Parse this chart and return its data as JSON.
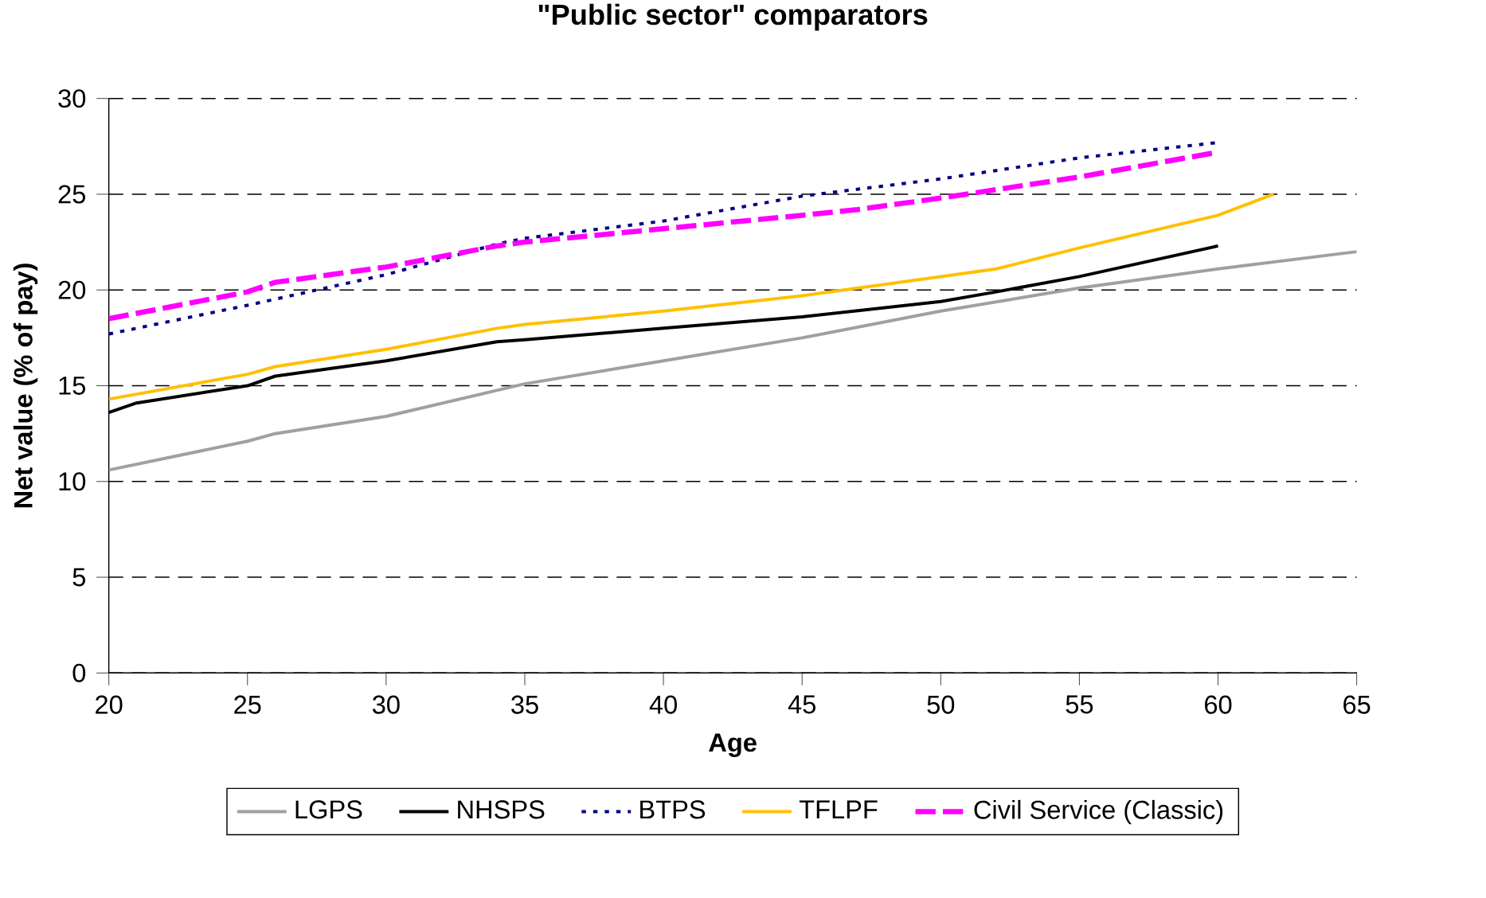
{
  "chart_data": {
    "type": "line",
    "title": "\"Public sector\" comparators",
    "xlabel": "Age",
    "ylabel": "Net value (% of pay)",
    "xlim": [
      20,
      65
    ],
    "xticks": [
      20,
      25,
      30,
      35,
      40,
      45,
      50,
      55,
      60,
      65
    ],
    "ylim": [
      0,
      30
    ],
    "yticks": [
      0,
      5,
      10,
      15,
      20,
      25,
      30
    ],
    "grid": "y",
    "legend": "bottom",
    "marker": "none",
    "series": [
      {
        "name": "LGPS",
        "color": "#a0a0a0",
        "line_style": "solid",
        "x": [
          20,
          25,
          26,
          30,
          35,
          40,
          45,
          50,
          55,
          60,
          65
        ],
        "values": [
          10.6,
          12.1,
          12.5,
          13.4,
          15.1,
          16.3,
          17.5,
          18.9,
          20.1,
          21.1,
          22.0
        ]
      },
      {
        "name": "NHSPS",
        "color": "#000000",
        "line_style": "solid",
        "x": [
          20,
          21,
          25,
          26,
          30,
          34,
          35,
          40,
          45,
          50,
          52,
          55,
          60
        ],
        "values": [
          13.6,
          14.1,
          15.0,
          15.5,
          16.3,
          17.3,
          17.4,
          18.0,
          18.6,
          19.4,
          19.9,
          20.7,
          22.3
        ]
      },
      {
        "name": "BTPS",
        "color": "#000080",
        "line_style": "dotted",
        "x": [
          20,
          25,
          30,
          34,
          35,
          40,
          45,
          50,
          55,
          60
        ],
        "values": [
          17.7,
          19.2,
          20.8,
          22.4,
          22.7,
          23.6,
          24.9,
          25.8,
          26.9,
          27.7
        ]
      },
      {
        "name": "TFLPF",
        "color": "#ffc000",
        "line_style": "solid",
        "x": [
          20,
          25,
          26,
          30,
          34,
          35,
          40,
          45,
          50,
          52,
          55,
          60,
          62
        ],
        "values": [
          14.3,
          15.6,
          16.0,
          16.9,
          18.0,
          18.2,
          18.9,
          19.7,
          20.7,
          21.1,
          22.2,
          23.9,
          25.0
        ]
      },
      {
        "name": "Civil Service (Classic)",
        "color": "#ff00ff",
        "line_style": "dashed",
        "x": [
          20,
          25,
          26,
          30,
          34,
          35,
          40,
          45,
          47,
          50,
          55,
          60
        ],
        "values": [
          18.5,
          19.9,
          20.4,
          21.2,
          22.3,
          22.5,
          23.2,
          23.9,
          24.2,
          24.8,
          25.9,
          27.2
        ]
      }
    ]
  }
}
